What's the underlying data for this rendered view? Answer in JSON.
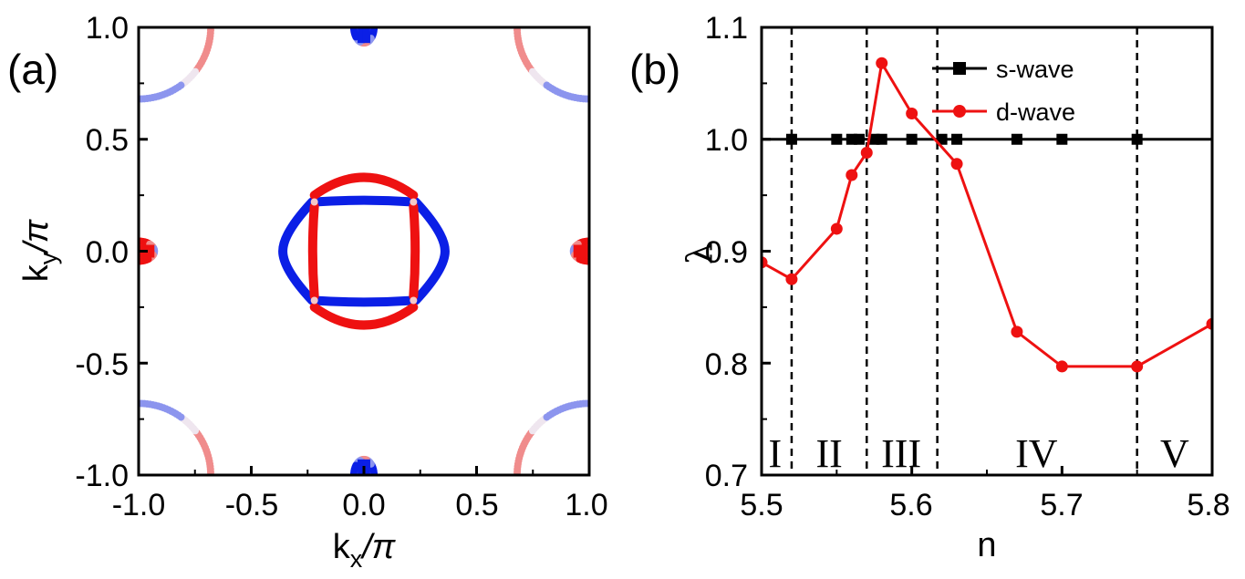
{
  "chart_data": [
    {
      "panel": "(a)",
      "type": "scatter",
      "xlabel": "kx/π",
      "ylabel": "ky/π",
      "xlim": [
        -1.0,
        1.0
      ],
      "ylim": [
        -1.0,
        1.0
      ],
      "xticks": [
        "-1.0",
        "-0.5",
        "0.0",
        "0.5",
        "1.0"
      ],
      "yticks": [
        "1.0",
        "0.5",
        "0.0",
        "-0.5",
        "-1.0"
      ],
      "colors": {
        "pocket_a": "#0b1fe6",
        "pocket_b": "#ee1111",
        "light_a": "#8c95ee",
        "light_b": "#f08c8c"
      },
      "pockets": [
        {
          "name": "gamma-inner-square",
          "color": "pocket_b",
          "shape": "rounded-square",
          "half_width": 0.22
        },
        {
          "name": "gamma-inner-flat",
          "color": "pocket_a",
          "shape": "rounded-square",
          "half_width": 0.22
        },
        {
          "name": "gamma-outer-diamond",
          "color": "pocket_a",
          "shape": "diamond",
          "half_width": 0.36
        },
        {
          "name": "gamma-outer-arcs",
          "color": "pocket_b",
          "shape": "diamond",
          "half_width": 0.36
        },
        {
          "name": "X-pocket-left",
          "center": [
            -1.0,
            0.0
          ],
          "color": "mixed"
        },
        {
          "name": "X-pocket-right",
          "center": [
            1.0,
            0.0
          ],
          "color": "mixed"
        },
        {
          "name": "Y-pocket-top",
          "center": [
            0.0,
            1.0
          ],
          "color": "mixed"
        },
        {
          "name": "Y-pocket-bottom",
          "center": [
            0.0,
            -1.0
          ],
          "color": "mixed"
        },
        {
          "name": "M-corner-arcs",
          "centers": [
            [
              -1,
              1
            ],
            [
              1,
              1
            ],
            [
              -1,
              -1
            ],
            [
              1,
              -1
            ]
          ],
          "radius": 0.32,
          "color": "faded-mixed"
        }
      ]
    },
    {
      "panel": "(b)",
      "type": "line",
      "xlabel": "n",
      "ylabel": "λ",
      "xlim": [
        5.5,
        5.8
      ],
      "ylim": [
        0.7,
        1.1
      ],
      "xticks": [
        "5.5",
        "5.6",
        "5.7",
        "5.8"
      ],
      "yticks": [
        "1.1",
        "1.0",
        "0.9",
        "0.8",
        "0.7"
      ],
      "series": [
        {
          "name": "s-wave",
          "color": "#000000",
          "marker": "square",
          "x": [
            5.5,
            5.52,
            5.55,
            5.56,
            5.565,
            5.575,
            5.58,
            5.6,
            5.62,
            5.63,
            5.67,
            5.7,
            5.75,
            5.8
          ],
          "y": [
            1.0,
            1.0,
            1.0,
            1.0,
            1.0,
            1.0,
            1.0,
            1.0,
            1.0,
            1.0,
            1.0,
            1.0,
            1.0,
            1.0
          ],
          "marker_x": [
            5.52,
            5.55,
            5.56,
            5.565,
            5.575,
            5.58,
            5.6,
            5.62,
            5.63,
            5.67,
            5.7,
            5.75
          ]
        },
        {
          "name": "d-wave",
          "color": "#ee1111",
          "marker": "circle",
          "x": [
            5.5,
            5.52,
            5.55,
            5.56,
            5.57,
            5.58,
            5.6,
            5.63,
            5.67,
            5.7,
            5.75,
            5.8
          ],
          "y": [
            0.89,
            0.875,
            0.92,
            0.968,
            0.988,
            1.068,
            1.023,
            0.978,
            0.828,
            0.797,
            0.797,
            0.835
          ]
        }
      ],
      "legend": [
        "s-wave",
        "d-wave"
      ],
      "legend_position": "top-right",
      "region_boundaries": [
        5.52,
        5.57,
        5.617,
        5.75
      ],
      "regions": [
        {
          "label": "I",
          "x": 5.509
        },
        {
          "label": "II",
          "x": 5.545
        },
        {
          "label": "III",
          "x": 5.593
        },
        {
          "label": "IV",
          "x": 5.683
        },
        {
          "label": "V",
          "x": 5.775
        }
      ]
    }
  ]
}
